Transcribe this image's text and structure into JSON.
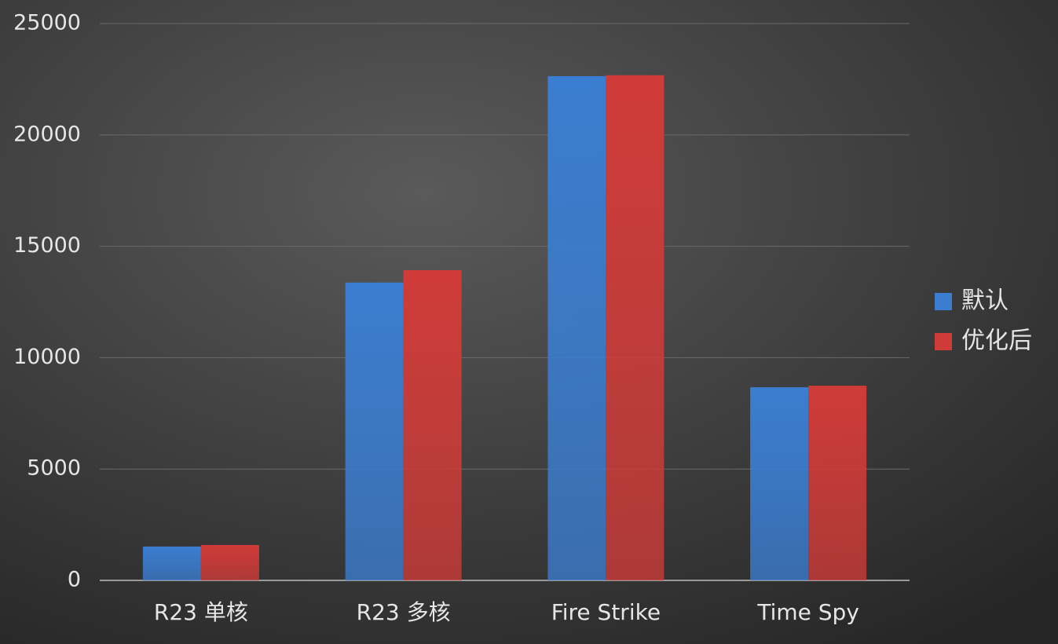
{
  "chart_data": {
    "type": "bar",
    "categories": [
      "R23 单核",
      "R23 多核",
      "Fire Strike",
      "Time Spy"
    ],
    "series": [
      {
        "name": "默认",
        "color": "#3b7dd0",
        "values": [
          1520,
          13370,
          22640,
          8670
        ]
      },
      {
        "name": "优化后",
        "color": "#cf3b38",
        "values": [
          1590,
          13930,
          22680,
          8740
        ]
      }
    ],
    "ylim": [
      0,
      25000
    ],
    "yticks": [
      0,
      5000,
      10000,
      15000,
      20000,
      25000
    ],
    "grid": true,
    "legend": "right"
  }
}
